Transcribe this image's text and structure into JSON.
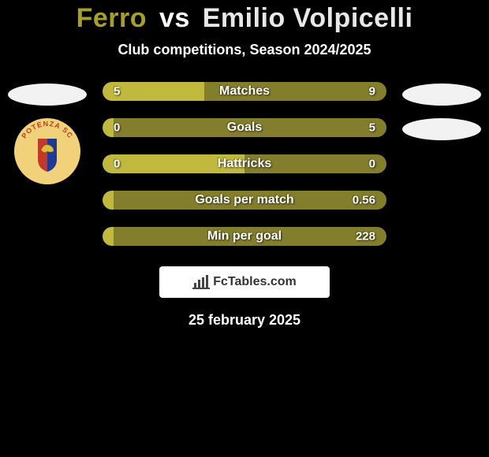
{
  "background_color": "#000000",
  "title": {
    "player1": "Ferro",
    "vs": "vs",
    "player2": "Emilio Volpicelli",
    "player1_color": "#a6a02a",
    "player2_color": "#e8e8e8"
  },
  "subtitle": "Club competitions, Season 2024/2025",
  "bars": [
    {
      "label": "Matches",
      "left_val": "5",
      "right_val": "9",
      "left_pct": 35.7
    },
    {
      "label": "Goals",
      "left_val": "0",
      "right_val": "5",
      "left_pct": 4
    },
    {
      "label": "Hattricks",
      "left_val": "0",
      "right_val": "0",
      "left_pct": 50
    },
    {
      "label": "Goals per match",
      "left_val": "",
      "right_val": "0.56",
      "left_pct": 4
    },
    {
      "label": "Min per goal",
      "left_val": "",
      "right_val": "228",
      "left_pct": 4
    }
  ],
  "bar_style": {
    "left_color": "#c1b93e",
    "right_color": "#837e2b",
    "height": 24,
    "radius": 12,
    "label_fontsize": 16,
    "value_fontsize": 15,
    "text_color": "#ffffff"
  },
  "badges": {
    "oval_color": "#f2f2f2",
    "crest_bg": "#f1d27a",
    "crest_label": "POTENZA SC",
    "crest_shield_left": "#c0392b",
    "crest_shield_right": "#1f3a93"
  },
  "attribution": {
    "icon": "bar-chart-icon",
    "text": "FcTables.com"
  },
  "date": "25 february 2025"
}
